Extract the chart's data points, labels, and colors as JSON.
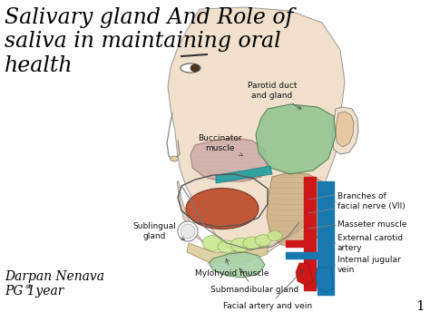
{
  "background_color": "#ffffff",
  "title_line1": "Salivary gland And Role of",
  "title_line2": "saliva in maintaining oral",
  "title_line3": "health",
  "title_color": "#000000",
  "title_fontsize": 17,
  "title_style": "italic",
  "title_font": "DejaVu Serif",
  "author_line1": "Darpan Nenava",
  "author_line2": "PG 1",
  "author_superscript": "st",
  "author_line2_suffix": " year",
  "author_fontsize": 10,
  "author_style": "italic",
  "author_font": "DejaVu Serif",
  "page_number": "1",
  "page_fontsize": 11,
  "label_fontsize": 6.5,
  "label_font": "sans-serif",
  "label_color": "#111111"
}
